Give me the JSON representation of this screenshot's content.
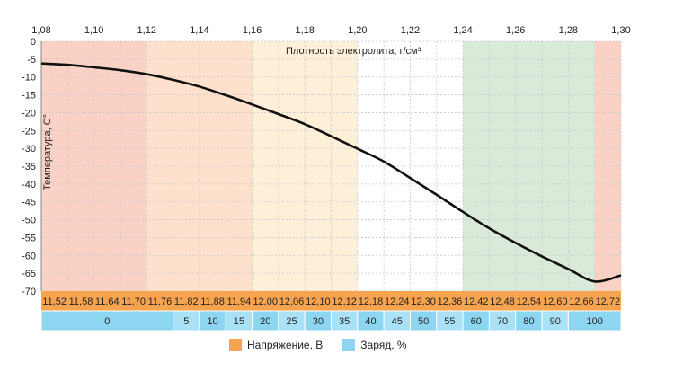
{
  "chart_data": {
    "type": "line",
    "xlabel": "Плотность электролита, г/см³",
    "ylabel": "Температура, С°",
    "x_ticks": [
      "1,08",
      "1,10",
      "1,12",
      "1,14",
      "1,16",
      "1,18",
      "1,20",
      "1,22",
      "1,24",
      "1,26",
      "1,28",
      "1,30"
    ],
    "xlim": [
      1.08,
      1.3
    ],
    "y_ticks": [
      "0",
      "-5",
      "-10",
      "-15",
      "-20",
      "-25",
      "-30",
      "-35",
      "-40",
      "-45",
      "-50",
      "-55",
      "-60",
      "-65",
      "-70"
    ],
    "ylim": [
      -70,
      0
    ],
    "grid": true,
    "series": [
      {
        "x": [
          1.08,
          1.09,
          1.1,
          1.11,
          1.12,
          1.13,
          1.14,
          1.15,
          1.16,
          1.17,
          1.18,
          1.19,
          1.2,
          1.21,
          1.22,
          1.23,
          1.24,
          1.25,
          1.26,
          1.27,
          1.28,
          1.29,
          1.3
        ],
        "y": [
          -6.2,
          -6.6,
          -7.3,
          -8.1,
          -9.2,
          -10.8,
          -12.7,
          -15.1,
          -17.7,
          -20.4,
          -23.2,
          -26.6,
          -30.1,
          -33.7,
          -38.3,
          -43.0,
          -47.8,
          -52.4,
          -56.5,
          -60.3,
          -63.8,
          -67.3,
          -65.6
        ]
      }
    ],
    "zones": [
      {
        "from": 1.08,
        "to": 1.12,
        "color": "#f9d2c5"
      },
      {
        "from": 1.12,
        "to": 1.16,
        "color": "#fde1cc"
      },
      {
        "from": 1.16,
        "to": 1.2,
        "color": "#fdefd8"
      },
      {
        "from": 1.2,
        "to": 1.24,
        "color": "#ffffff"
      },
      {
        "from": 1.24,
        "to": 1.29,
        "color": "#d9ead8"
      },
      {
        "from": 1.29,
        "to": 1.3,
        "color": "#f9d2c5"
      }
    ],
    "voltage_row": {
      "labels": [
        "11,52",
        "11,58",
        "11,64",
        "11,70",
        "11,76",
        "11,82",
        "11,88",
        "11,94",
        "12,00",
        "12,06",
        "12,10",
        "12,12",
        "12,18",
        "12,24",
        "12,30",
        "12,36",
        "12,42",
        "12,48",
        "12,54",
        "12,60",
        "12,66",
        "12,72"
      ],
      "color": "#f7a451"
    },
    "charge_row": {
      "cells": [
        {
          "label": "0",
          "from": 0,
          "to": 5
        },
        {
          "label": "5",
          "from": 5,
          "to": 6
        },
        {
          "label": "10",
          "from": 6,
          "to": 7
        },
        {
          "label": "15",
          "from": 7,
          "to": 8
        },
        {
          "label": "20",
          "from": 8,
          "to": 9
        },
        {
          "label": "25",
          "from": 9,
          "to": 10
        },
        {
          "label": "30",
          "from": 10,
          "to": 11
        },
        {
          "label": "35",
          "from": 11,
          "to": 12
        },
        {
          "label": "40",
          "from": 12,
          "to": 13
        },
        {
          "label": "45",
          "from": 13,
          "to": 14
        },
        {
          "label": "50",
          "from": 14,
          "to": 15
        },
        {
          "label": "55",
          "from": 15,
          "to": 16
        },
        {
          "label": "60",
          "from": 16,
          "to": 17
        },
        {
          "label": "70",
          "from": 17,
          "to": 18
        },
        {
          "label": "80",
          "from": 18,
          "to": 19
        },
        {
          "label": "90",
          "from": 19,
          "to": 20
        },
        {
          "label": "100",
          "from": 20,
          "to": 22
        }
      ],
      "color": "#8dd6f2",
      "color_alt": "#a9e2f6"
    },
    "legend": [
      {
        "label": "Напряжение, В",
        "color": "#f7a451"
      },
      {
        "label": "Заряд, %",
        "color": "#8dd6f2"
      }
    ]
  }
}
